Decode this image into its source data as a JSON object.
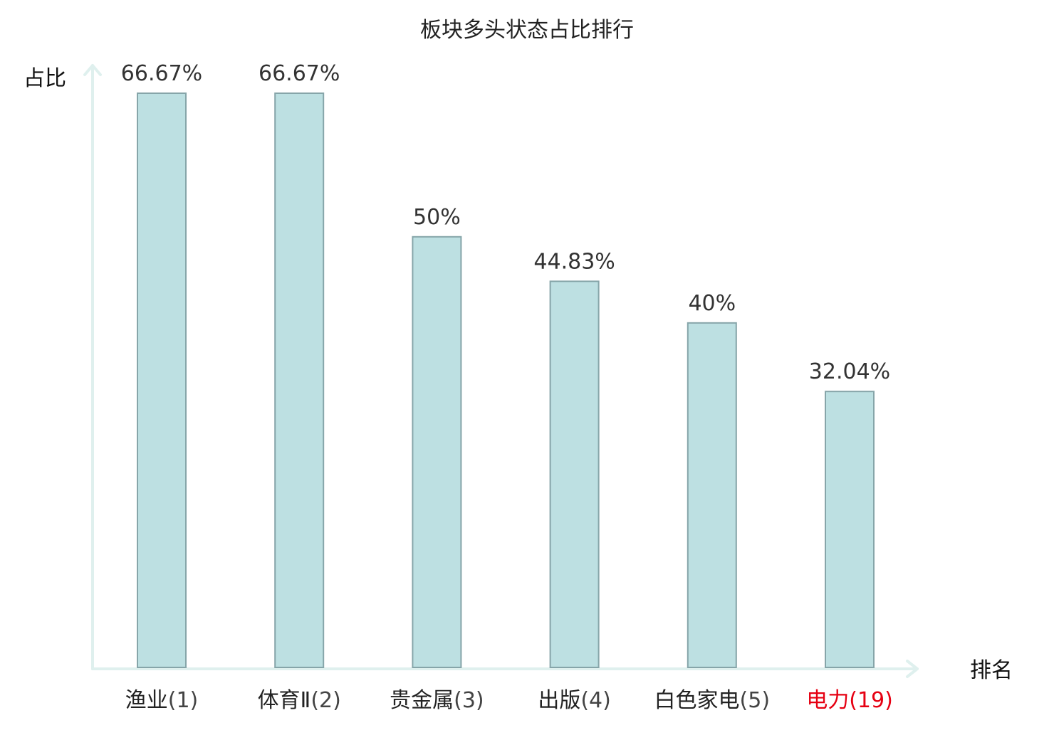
{
  "chart_data": {
    "type": "bar",
    "title": "板块多头状态占比排行",
    "ylabel": "占比",
    "xlabel": "排名",
    "ylim": [
      0,
      70
    ],
    "grid": false,
    "categories": [
      {
        "name": "渔业",
        "rank": "(1)"
      },
      {
        "name": "体育Ⅱ",
        "rank": "(2)"
      },
      {
        "name": "贵金属",
        "rank": "(3)"
      },
      {
        "name": "出版",
        "rank": "(4)"
      },
      {
        "name": "白色家电",
        "rank": "(5)"
      },
      {
        "name": "电力",
        "rank": "(19)",
        "highlight": true
      }
    ],
    "values": [
      66.67,
      66.67,
      50,
      44.83,
      40,
      32.04
    ],
    "value_labels": [
      "66.67%",
      "66.67%",
      "50%",
      "44.83%",
      "40%",
      "32.04%"
    ]
  },
  "colors": {
    "bar_fill": "#bde0e2",
    "bar_stroke": "#86a5a9",
    "axis": "#dff0ee",
    "highlight": "#e60012"
  }
}
